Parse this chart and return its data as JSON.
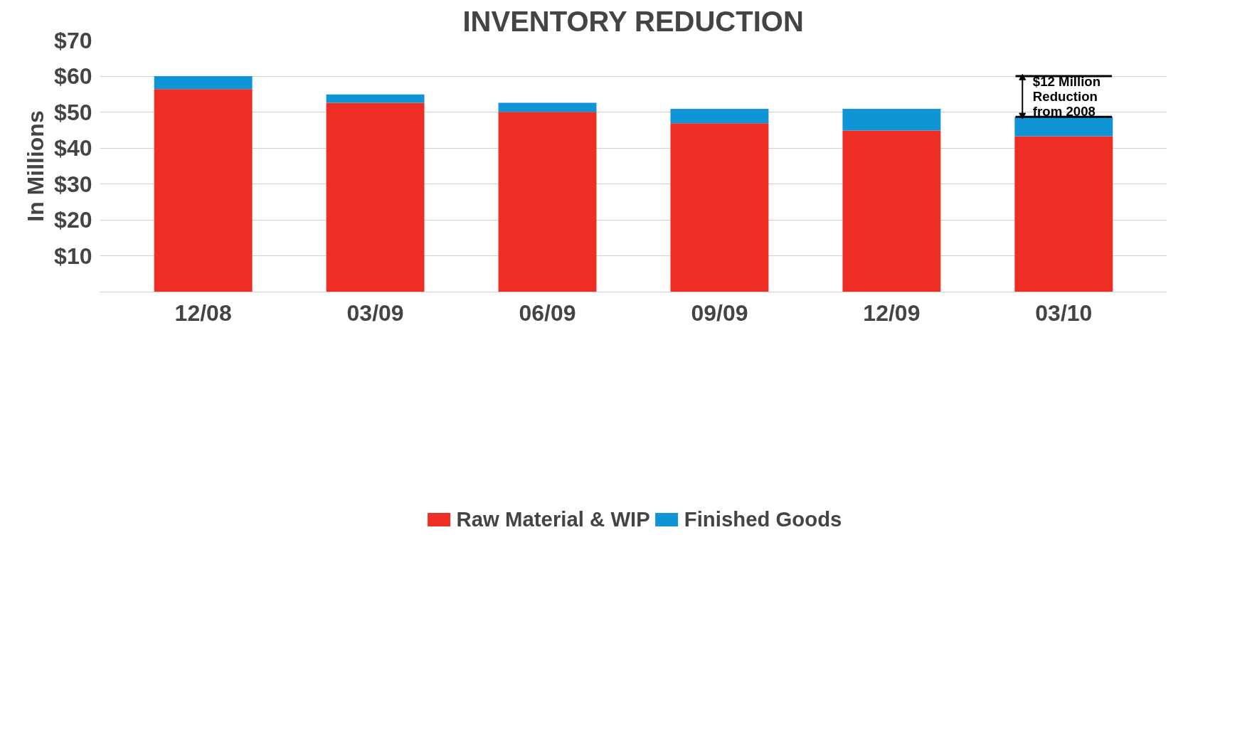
{
  "chart_data": {
    "type": "bar",
    "title": "INVENTORY REDUCTION",
    "ylabel": "In Millions",
    "categories": [
      "12/08",
      "03/09",
      "06/09",
      "09/09",
      "12/09",
      "03/10"
    ],
    "stacked": true,
    "series": [
      {
        "name": "Raw Material & WIP",
        "color": "#ee2e24",
        "values": [
          56.4,
          52.6,
          50.1,
          46.9,
          44.9,
          43.3
        ]
      },
      {
        "name": "Finished Goods",
        "color": "#0f95d6",
        "values": [
          3.6,
          2.3,
          2.5,
          4.0,
          6.0,
          5.4
        ]
      }
    ],
    "ylim": [
      0,
      70
    ],
    "yticks": [
      {
        "value": 0,
        "label": null
      },
      {
        "value": 10,
        "label": "$10"
      },
      {
        "value": 20,
        "label": "$20"
      },
      {
        "value": 30,
        "label": "$30"
      },
      {
        "value": 40,
        "label": "$40"
      },
      {
        "value": 50,
        "label": "$50"
      },
      {
        "value": 60,
        "label": "$60"
      },
      {
        "value": 70,
        "label": "$70"
      }
    ],
    "grid": "y",
    "legend": "bottom",
    "annotations": [
      "$12 Million\nReduction\nfrom 2008"
    ]
  }
}
